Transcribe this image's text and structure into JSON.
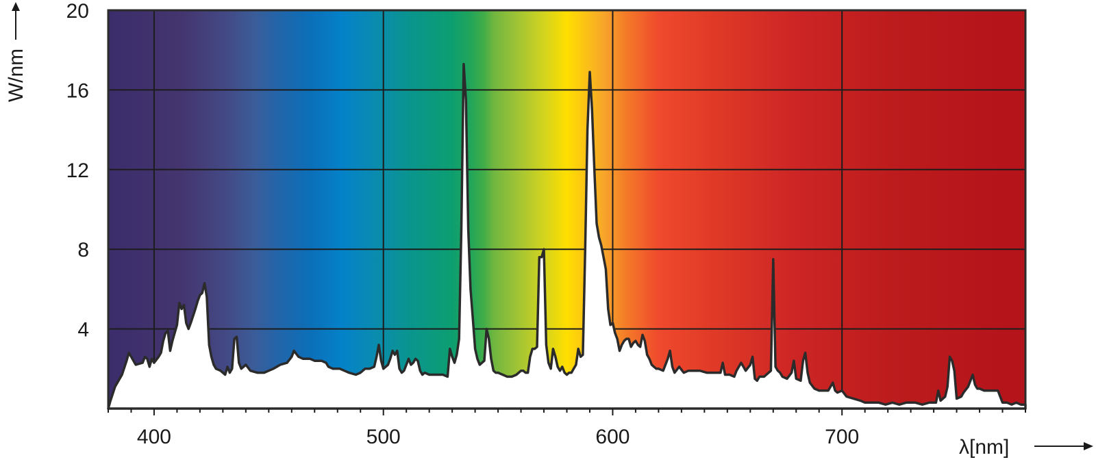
{
  "chart_data": {
    "type": "area",
    "title": "",
    "xlabel": "λ[nm]",
    "ylabel": "W/nm",
    "xlim": [
      380,
      780
    ],
    "ylim": [
      0,
      20
    ],
    "xticks": [
      400,
      500,
      600,
      700
    ],
    "yticks": [
      4,
      8,
      12,
      16,
      20
    ],
    "grid": true,
    "background": "visible spectrum color gradient",
    "series": [
      {
        "values": [
          [
            380,
            0.0
          ],
          [
            381,
            0.4
          ],
          [
            383,
            1.1
          ],
          [
            386,
            1.7
          ],
          [
            388,
            2.4
          ],
          [
            389,
            2.8
          ],
          [
            390,
            2.6
          ],
          [
            392,
            2.2
          ],
          [
            395,
            2.3
          ],
          [
            396,
            2.6
          ],
          [
            397,
            2.5
          ],
          [
            398,
            2.1
          ],
          [
            399,
            2.5
          ],
          [
            400,
            2.3
          ],
          [
            402,
            2.6
          ],
          [
            403,
            2.8
          ],
          [
            404,
            3.4
          ],
          [
            405,
            3.8
          ],
          [
            406,
            3.9
          ],
          [
            407,
            2.9
          ],
          [
            408,
            3.4
          ],
          [
            410,
            4.2
          ],
          [
            411,
            5.3
          ],
          [
            412,
            5.0
          ],
          [
            413,
            5.2
          ],
          [
            414,
            4.3
          ],
          [
            415,
            4.0
          ],
          [
            416,
            4.3
          ],
          [
            418,
            5.0
          ],
          [
            419,
            5.4
          ],
          [
            420,
            5.7
          ],
          [
            421,
            5.8
          ],
          [
            422,
            6.3
          ],
          [
            423,
            5.6
          ],
          [
            424,
            3.2
          ],
          [
            425,
            2.6
          ],
          [
            426,
            2.2
          ],
          [
            427,
            2.0
          ],
          [
            429,
            1.9
          ],
          [
            431,
            1.7
          ],
          [
            432,
            2.1
          ],
          [
            433,
            1.8
          ],
          [
            434,
            2.0
          ],
          [
            435,
            3.5
          ],
          [
            436,
            3.6
          ],
          [
            437,
            2.3
          ],
          [
            438,
            2.0
          ],
          [
            440,
            2.2
          ],
          [
            442,
            1.9
          ],
          [
            445,
            1.8
          ],
          [
            448,
            1.8
          ],
          [
            450,
            1.9
          ],
          [
            452,
            2.0
          ],
          [
            455,
            2.2
          ],
          [
            458,
            2.3
          ],
          [
            460,
            2.6
          ],
          [
            461,
            2.9
          ],
          [
            463,
            2.6
          ],
          [
            465,
            2.5
          ],
          [
            468,
            2.5
          ],
          [
            470,
            2.4
          ],
          [
            473,
            2.4
          ],
          [
            475,
            2.3
          ],
          [
            476,
            2.1
          ],
          [
            478,
            2.0
          ],
          [
            481,
            2.0
          ],
          [
            483,
            1.9
          ],
          [
            485,
            1.8
          ],
          [
            488,
            1.7
          ],
          [
            490,
            1.8
          ],
          [
            492,
            2.0
          ],
          [
            494,
            2.0
          ],
          [
            496,
            2.1
          ],
          [
            497,
            2.6
          ],
          [
            498,
            3.2
          ],
          [
            499,
            2.4
          ],
          [
            500,
            2.0
          ],
          [
            502,
            2.2
          ],
          [
            503,
            2.5
          ],
          [
            504,
            2.9
          ],
          [
            505,
            2.7
          ],
          [
            506,
            2.9
          ],
          [
            507,
            2.0
          ],
          [
            508,
            1.8
          ],
          [
            509,
            1.9
          ],
          [
            510,
            2.2
          ],
          [
            511,
            2.5
          ],
          [
            512,
            2.2
          ],
          [
            513,
            2.3
          ],
          [
            514,
            2.5
          ],
          [
            515,
            2.4
          ],
          [
            516,
            1.9
          ],
          [
            517,
            1.7
          ],
          [
            518,
            1.8
          ],
          [
            520,
            1.7
          ],
          [
            522,
            1.7
          ],
          [
            524,
            1.7
          ],
          [
            526,
            1.7
          ],
          [
            528,
            1.6
          ],
          [
            529,
            3.0
          ],
          [
            530,
            2.6
          ],
          [
            531,
            2.3
          ],
          [
            532,
            2.7
          ],
          [
            533,
            3.5
          ],
          [
            534,
            9.0
          ],
          [
            535,
            17.3
          ],
          [
            536,
            15.5
          ],
          [
            537,
            9.0
          ],
          [
            538,
            6.0
          ],
          [
            539,
            4.5
          ],
          [
            540,
            3.0
          ],
          [
            541,
            2.5
          ],
          [
            542,
            2.2
          ],
          [
            543,
            2.3
          ],
          [
            544,
            2.4
          ],
          [
            545,
            4.0
          ],
          [
            546,
            3.5
          ],
          [
            547,
            2.5
          ],
          [
            548,
            1.9
          ],
          [
            549,
            1.8
          ],
          [
            550,
            1.8
          ],
          [
            552,
            1.7
          ],
          [
            554,
            1.6
          ],
          [
            556,
            1.6
          ],
          [
            558,
            1.7
          ],
          [
            560,
            1.9
          ],
          [
            561,
            1.9
          ],
          [
            562,
            1.8
          ],
          [
            563,
            1.8
          ],
          [
            564,
            2.6
          ],
          [
            565,
            3.0
          ],
          [
            566,
            3.0
          ],
          [
            567,
            3.1
          ],
          [
            568,
            7.6
          ],
          [
            569,
            7.6
          ],
          [
            570,
            8.0
          ],
          [
            571,
            3.2
          ],
          [
            572,
            2.3
          ],
          [
            573,
            2.0
          ],
          [
            574,
            3.0
          ],
          [
            575,
            2.6
          ],
          [
            576,
            2.1
          ],
          [
            577,
            1.9
          ],
          [
            578,
            2.1
          ],
          [
            579,
            1.8
          ],
          [
            580,
            1.7
          ],
          [
            581,
            1.8
          ],
          [
            582,
            1.8
          ],
          [
            583,
            2.0
          ],
          [
            584,
            2.2
          ],
          [
            585,
            3.0
          ],
          [
            586,
            2.6
          ],
          [
            587,
            2.7
          ],
          [
            588,
            8.0
          ],
          [
            589,
            14.0
          ],
          [
            590,
            16.9
          ],
          [
            591,
            15.0
          ],
          [
            592,
            12.0
          ],
          [
            593,
            9.3
          ],
          [
            594,
            8.6
          ],
          [
            595,
            8.2
          ],
          [
            596,
            7.6
          ],
          [
            597,
            7.0
          ],
          [
            598,
            5.0
          ],
          [
            599,
            4.2
          ],
          [
            600,
            4.3
          ],
          [
            601,
            3.8
          ],
          [
            602,
            3.5
          ],
          [
            603,
            2.9
          ],
          [
            604,
            3.2
          ],
          [
            605,
            3.4
          ],
          [
            606,
            3.5
          ],
          [
            607,
            3.5
          ],
          [
            608,
            3.1
          ],
          [
            609,
            3.3
          ],
          [
            610,
            3.4
          ],
          [
            611,
            3.2
          ],
          [
            612,
            3.1
          ],
          [
            613,
            3.7
          ],
          [
            614,
            3.4
          ],
          [
            615,
            2.7
          ],
          [
            616,
            2.5
          ],
          [
            617,
            2.2
          ],
          [
            618,
            2.1
          ],
          [
            619,
            2.0
          ],
          [
            620,
            2.0
          ],
          [
            622,
            1.9
          ],
          [
            624,
            2.5
          ],
          [
            625,
            2.9
          ],
          [
            626,
            2.1
          ],
          [
            627,
            1.8
          ],
          [
            629,
            2.1
          ],
          [
            631,
            1.8
          ],
          [
            633,
            1.9
          ],
          [
            636,
            1.9
          ],
          [
            638,
            1.9
          ],
          [
            641,
            1.8
          ],
          [
            643,
            1.8
          ],
          [
            645,
            1.8
          ],
          [
            647,
            1.8
          ],
          [
            648,
            2.3
          ],
          [
            649,
            1.7
          ],
          [
            651,
            1.7
          ],
          [
            653,
            1.6
          ],
          [
            654,
            1.9
          ],
          [
            656,
            2.3
          ],
          [
            657,
            2.1
          ],
          [
            658,
            1.9
          ],
          [
            660,
            2.2
          ],
          [
            661,
            2.6
          ],
          [
            662,
            1.5
          ],
          [
            663,
            1.4
          ],
          [
            664,
            1.6
          ],
          [
            666,
            1.6
          ],
          [
            668,
            1.8
          ],
          [
            669,
            1.9
          ],
          [
            670,
            7.5
          ],
          [
            671,
            2.1
          ],
          [
            672,
            1.9
          ],
          [
            673,
            1.8
          ],
          [
            674,
            1.6
          ],
          [
            676,
            1.5
          ],
          [
            678,
            1.8
          ],
          [
            679,
            2.4
          ],
          [
            680,
            1.5
          ],
          [
            682,
            1.4
          ],
          [
            683,
            2.4
          ],
          [
            684,
            2.8
          ],
          [
            685,
            1.8
          ],
          [
            686,
            1.3
          ],
          [
            688,
            1.0
          ],
          [
            690,
            0.9
          ],
          [
            692,
            0.9
          ],
          [
            694,
            0.9
          ],
          [
            696,
            1.3
          ],
          [
            697,
            0.9
          ],
          [
            698,
            0.8
          ],
          [
            700,
            0.9
          ],
          [
            702,
            0.6
          ],
          [
            705,
            0.5
          ],
          [
            708,
            0.4
          ],
          [
            710,
            0.3
          ],
          [
            713,
            0.3
          ],
          [
            716,
            0.3
          ],
          [
            719,
            0.2
          ],
          [
            722,
            0.3
          ],
          [
            725,
            0.2
          ],
          [
            728,
            0.3
          ],
          [
            732,
            0.3
          ],
          [
            735,
            0.2
          ],
          [
            738,
            0.3
          ],
          [
            741,
            0.3
          ],
          [
            742,
            0.9
          ],
          [
            743,
            0.4
          ],
          [
            745,
            0.6
          ],
          [
            746,
            1.1
          ],
          [
            747,
            2.6
          ],
          [
            748,
            2.4
          ],
          [
            749,
            1.9
          ],
          [
            750,
            0.5
          ],
          [
            752,
            0.6
          ],
          [
            753,
            0.8
          ],
          [
            755,
            1.1
          ],
          [
            756,
            1.4
          ],
          [
            757,
            1.7
          ],
          [
            758,
            1.2
          ],
          [
            759,
            1.0
          ],
          [
            760,
            1.0
          ],
          [
            762,
            0.9
          ],
          [
            764,
            0.9
          ],
          [
            766,
            0.9
          ],
          [
            768,
            0.9
          ],
          [
            770,
            0.3
          ],
          [
            772,
            0.3
          ],
          [
            774,
            0.2
          ],
          [
            776,
            0.3
          ],
          [
            778,
            0.2
          ],
          [
            780,
            0.2
          ]
        ]
      }
    ]
  }
}
